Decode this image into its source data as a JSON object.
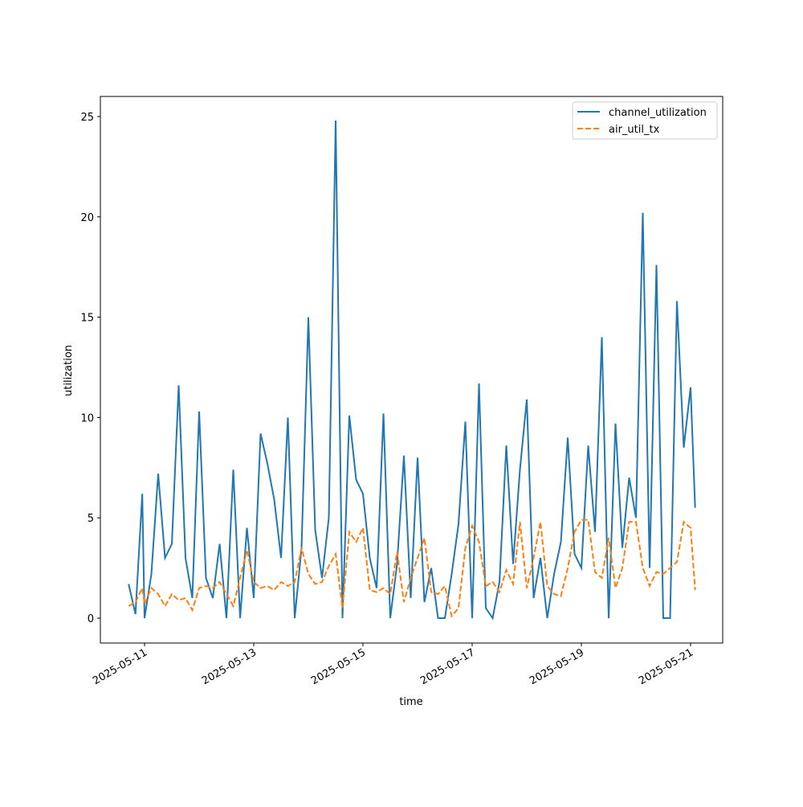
{
  "chart_data": {
    "type": "line",
    "xlabel": "time",
    "ylabel": "utilization",
    "x": [
      "2025-05-10T17:00",
      "2025-05-10T20:00",
      "2025-05-10T23:00",
      "2025-05-11T00:00",
      "2025-05-11T03:00",
      "2025-05-11T06:00",
      "2025-05-11T09:00",
      "2025-05-11T12:00",
      "2025-05-11T15:00",
      "2025-05-11T18:00",
      "2025-05-11T21:00",
      "2025-05-12T00:00",
      "2025-05-12T03:00",
      "2025-05-12T06:00",
      "2025-05-12T09:00",
      "2025-05-12T12:00",
      "2025-05-12T15:00",
      "2025-05-12T18:00",
      "2025-05-12T21:00",
      "2025-05-13T00:00",
      "2025-05-13T03:00",
      "2025-05-13T06:00",
      "2025-05-13T09:00",
      "2025-05-13T12:00",
      "2025-05-13T15:00",
      "2025-05-13T18:00",
      "2025-05-13T21:00",
      "2025-05-14T00:00",
      "2025-05-14T03:00",
      "2025-05-14T06:00",
      "2025-05-14T09:00",
      "2025-05-14T12:00",
      "2025-05-14T15:00",
      "2025-05-14T18:00",
      "2025-05-14T21:00",
      "2025-05-15T00:00",
      "2025-05-15T03:00",
      "2025-05-15T06:00",
      "2025-05-15T09:00",
      "2025-05-15T12:00",
      "2025-05-15T15:00",
      "2025-05-15T18:00",
      "2025-05-15T21:00",
      "2025-05-16T00:00",
      "2025-05-16T03:00",
      "2025-05-16T06:00",
      "2025-05-16T09:00",
      "2025-05-16T12:00",
      "2025-05-16T15:00",
      "2025-05-16T18:00",
      "2025-05-16T21:00",
      "2025-05-17T00:00",
      "2025-05-17T03:00",
      "2025-05-17T06:00",
      "2025-05-17T09:00",
      "2025-05-17T12:00",
      "2025-05-17T15:00",
      "2025-05-17T18:00",
      "2025-05-17T21:00",
      "2025-05-18T00:00",
      "2025-05-18T03:00",
      "2025-05-18T06:00",
      "2025-05-18T09:00",
      "2025-05-18T12:00",
      "2025-05-18T15:00",
      "2025-05-18T18:00",
      "2025-05-18T21:00",
      "2025-05-19T00:00",
      "2025-05-19T03:00",
      "2025-05-19T06:00",
      "2025-05-19T09:00",
      "2025-05-19T12:00",
      "2025-05-19T15:00",
      "2025-05-19T18:00",
      "2025-05-19T21:00",
      "2025-05-20T00:00",
      "2025-05-20T03:00",
      "2025-05-20T06:00",
      "2025-05-20T09:00",
      "2025-05-20T12:00",
      "2025-05-20T15:00",
      "2025-05-20T18:00",
      "2025-05-20T21:00",
      "2025-05-21T00:00",
      "2025-05-21T02:00"
    ],
    "series": [
      {
        "name": "channel_utilization",
        "color": "#1f77b4",
        "dash": false,
        "values": [
          1.7,
          0.2,
          6.2,
          0,
          2.2,
          7.2,
          3.0,
          3.7,
          11.6,
          3.0,
          1.0,
          10.3,
          2.0,
          1.0,
          3.7,
          0,
          7.4,
          0,
          4.5,
          1.0,
          9.2,
          7.7,
          5.9,
          3.0,
          10.0,
          0,
          3.5,
          15.0,
          4.4,
          2.0,
          5.0,
          24.8,
          0,
          10.1,
          6.9,
          6.2,
          3.0,
          1.5,
          10.2,
          0,
          2.7,
          8.1,
          1.0,
          8.0,
          0.8,
          2.5,
          0,
          0,
          2.2,
          4.7,
          9.8,
          0,
          11.7,
          0.5,
          0,
          1.8,
          8.6,
          2.7,
          7.4,
          10.9,
          1.0,
          3.0,
          0,
          2.2,
          3.8,
          9.0,
          3.2,
          2.5,
          8.6,
          4.3,
          14.0,
          0,
          9.7,
          3.5,
          7.0,
          5.0,
          20.2,
          2.5,
          17.6,
          0,
          0,
          15.8,
          8.5,
          11.5,
          5.5
        ]
      },
      {
        "name": "air_util_tx",
        "color": "#ff7f0e",
        "dash": true,
        "values": [
          0.6,
          0.8,
          1.5,
          0.7,
          1.5,
          1.2,
          0.6,
          1.2,
          0.9,
          1.0,
          0.4,
          1.5,
          1.6,
          1.5,
          1.8,
          1.2,
          0.6,
          2.0,
          3.4,
          1.8,
          1.5,
          1.6,
          1.4,
          1.8,
          1.6,
          1.8,
          3.5,
          2.2,
          1.7,
          1.8,
          2.6,
          3.2,
          0.5,
          4.3,
          3.8,
          4.5,
          1.4,
          1.3,
          1.5,
          1.2,
          3.3,
          0.8,
          2.0,
          3.0,
          4.0,
          1.3,
          1.2,
          1.6,
          0.1,
          0.5,
          3.5,
          4.6,
          3.8,
          1.6,
          1.8,
          1.3,
          2.4,
          1.7,
          4.8,
          1.5,
          3.0,
          4.8,
          1.6,
          1.2,
          1.1,
          2.5,
          4.3,
          4.9,
          4.9,
          2.3,
          2.0,
          4.0,
          1.5,
          2.5,
          4.8,
          4.8,
          2.5,
          1.6,
          2.3,
          2.2,
          2.5,
          2.8,
          4.8,
          4.5,
          1.4
        ]
      }
    ],
    "xlim": [
      "2025-05-10T04:35",
      "2025-05-21T14:07"
    ],
    "xticks": [
      "2025-05-11",
      "2025-05-13",
      "2025-05-15",
      "2025-05-17",
      "2025-05-19",
      "2025-05-21"
    ],
    "ylim": [
      -1.24,
      26.0
    ],
    "yticks": [
      0,
      5,
      10,
      15,
      20,
      25
    ],
    "legend": "upper right"
  }
}
